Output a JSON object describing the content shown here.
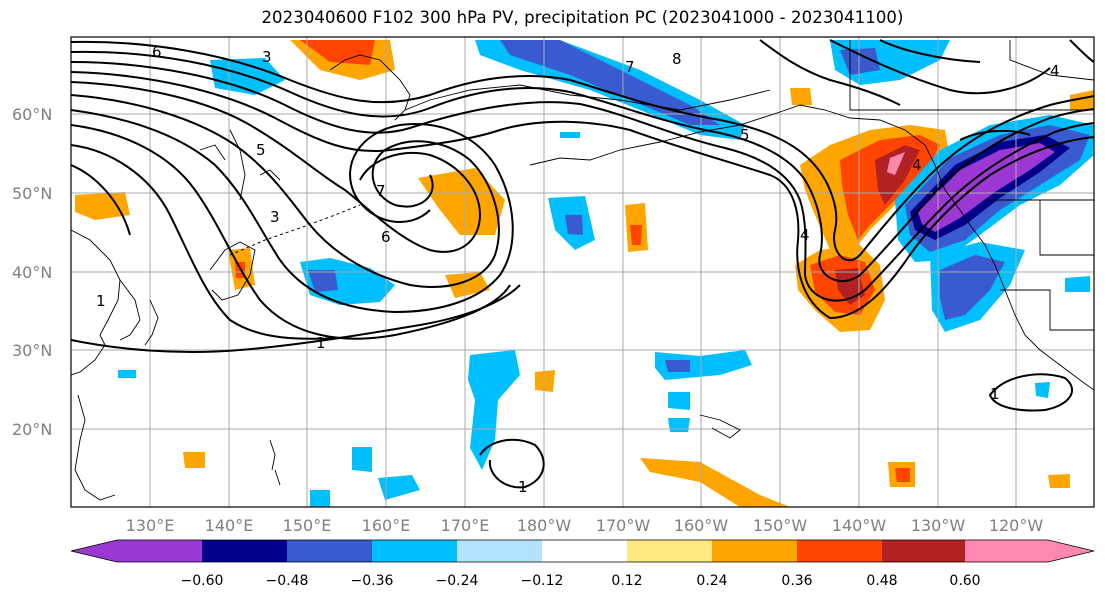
{
  "title": "2023040600 F102 300 hPa PV, precipitation PC (2023041000 - 2023041100)",
  "map": {
    "lat_labels": [
      "60°N",
      "50°N",
      "40°N",
      "30°N",
      "20°N"
    ],
    "lon_labels": [
      "130°E",
      "140°E",
      "150°E",
      "160°E",
      "170°E",
      "180°W",
      "170°W",
      "160°W",
      "150°W",
      "140°W",
      "130°W",
      "120°W"
    ],
    "pv_contour_labels": [
      "6",
      "3",
      "7",
      "8",
      "4",
      "5",
      "3",
      "7",
      "6",
      "5",
      "1",
      "1",
      "1",
      "4",
      "1",
      "4"
    ]
  },
  "colorbar": {
    "ticks": [
      "−0.60",
      "−0.48",
      "−0.36",
      "−0.24",
      "−0.12",
      "0.12",
      "0.24",
      "0.36",
      "0.48",
      "0.60"
    ],
    "colors": [
      "#9b37d3",
      "#00008b",
      "#3a5bd0",
      "#00bfff",
      "#b3e3ff",
      "#ffffff",
      "#ffe880",
      "#ffa500",
      "#ff4500",
      "#b22222",
      "#ff88b0"
    ]
  }
}
